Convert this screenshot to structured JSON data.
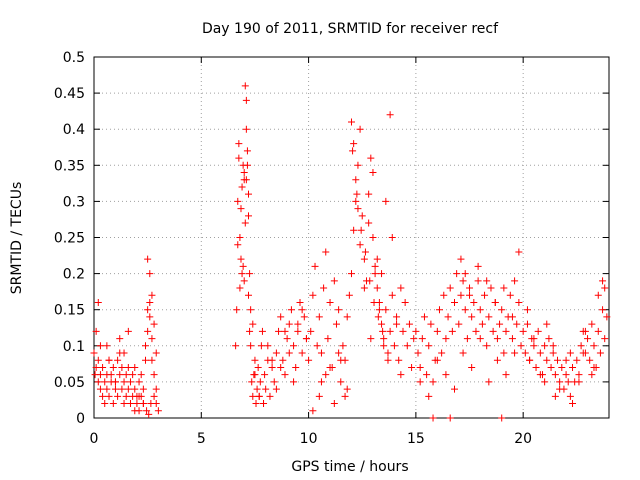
{
  "chart_data": {
    "type": "scatter",
    "title": "Day 190 of 2011, SRMTID for receiver recf",
    "xlabel": "GPS time / hours",
    "ylabel": "SRMTID / TECUs",
    "xlim": [
      0,
      24
    ],
    "ylim": [
      0,
      0.5
    ],
    "xticks": [
      "0",
      "5",
      "10",
      "15",
      "20"
    ],
    "yticks": [
      "0",
      "0.05",
      "0.1",
      "0.15",
      "0.2",
      "0.25",
      "0.3",
      "0.35",
      "0.4",
      "0.45",
      "0.5"
    ],
    "grid": true,
    "marker": "+",
    "color": "#ff0000",
    "series": [
      {
        "x": [
          0.0,
          0.1,
          0.1,
          0.2,
          0.2,
          0.3,
          0.3,
          0.4,
          0.4,
          0.5,
          0.5,
          0.6,
          0.6,
          0.7,
          0.7,
          0.8,
          0.8,
          0.9,
          0.9,
          1.0,
          1.0,
          1.1,
          1.1,
          1.2,
          1.2,
          1.3,
          1.3,
          1.4,
          1.4,
          1.5,
          1.5,
          1.6,
          1.6,
          1.7,
          1.7,
          1.8,
          1.8,
          1.9,
          1.9,
          2.0,
          2.0,
          2.1,
          2.1,
          2.2,
          2.2,
          2.3,
          2.3,
          2.4,
          2.4,
          2.5,
          2.5,
          2.6,
          2.6,
          2.7,
          2.7,
          2.8,
          2.8,
          2.9,
          2.9,
          3.0,
          0.2,
          0.6,
          1.2,
          1.6,
          2.5,
          2.6,
          2.7,
          2.8,
          2.9,
          0.05,
          0.3,
          0.7,
          1.0,
          1.4,
          1.9,
          2.1,
          2.3,
          2.45,
          2.55,
          2.65,
          6.6,
          6.65,
          6.7,
          6.75,
          6.8,
          6.85,
          6.9,
          6.95,
          7.0,
          7.05,
          7.1,
          7.15,
          7.2,
          7.25,
          7.3,
          7.35,
          7.4,
          7.45,
          7.5,
          7.55,
          7.6,
          7.65,
          7.7,
          7.75,
          7.8,
          7.85,
          7.9,
          7.95,
          8.0,
          8.1,
          8.2,
          8.3,
          8.4,
          8.5,
          8.6,
          8.7,
          8.8,
          8.9,
          9.0,
          9.1,
          9.2,
          9.3,
          9.4,
          9.5,
          9.6,
          9.7,
          9.8,
          9.9,
          6.7,
          6.8,
          6.85,
          6.95,
          7.0,
          7.1,
          7.15,
          7.2,
          7.3,
          7.4,
          6.75,
          6.9,
          7.05,
          7.25,
          7.5,
          7.7,
          7.9,
          8.1,
          8.3,
          8.5,
          8.7,
          8.9,
          9.1,
          9.3,
          9.5,
          9.7,
          9.9,
          7.0,
          7.1,
          7.2,
          10.0,
          10.1,
          10.2,
          10.3,
          10.4,
          10.5,
          10.6,
          10.7,
          10.8,
          10.9,
          11.0,
          11.1,
          11.2,
          11.3,
          11.4,
          11.5,
          11.6,
          11.7,
          11.8,
          11.9,
          12.0,
          12.1,
          12.2,
          12.3,
          12.4,
          12.5,
          12.6,
          12.7,
          12.8,
          12.9,
          13.0,
          13.1,
          13.2,
          13.3,
          13.4,
          13.5,
          13.6,
          13.7,
          13.8,
          13.9,
          14.0,
          14.1,
          14.2,
          14.3,
          14.4,
          14.5,
          14.6,
          14.7,
          14.8,
          14.9,
          12.0,
          12.1,
          12.2,
          12.3,
          12.4,
          12.6,
          12.8,
          13.0,
          13.2,
          13.4,
          13.6,
          13.8,
          12.05,
          12.25,
          12.45,
          12.65,
          12.85,
          13.05,
          13.25,
          13.45,
          10.5,
          10.8,
          11.2,
          11.5,
          11.8,
          10.2,
          10.6,
          11.0,
          11.4,
          11.7,
          12.9,
          13.1,
          13.3,
          13.5,
          13.7,
          13.9,
          14.1,
          14.3,
          15.0,
          15.1,
          15.2,
          15.3,
          15.4,
          15.5,
          15.6,
          15.7,
          15.8,
          15.9,
          16.0,
          16.1,
          16.2,
          16.3,
          16.4,
          16.5,
          16.6,
          16.7,
          16.8,
          16.9,
          17.0,
          17.1,
          17.2,
          17.3,
          17.4,
          17.5,
          17.6,
          17.7,
          17.8,
          17.9,
          18.0,
          18.1,
          18.2,
          18.3,
          18.4,
          18.5,
          18.6,
          18.7,
          18.8,
          18.9,
          19.0,
          19.1,
          19.2,
          19.3,
          19.4,
          19.5,
          19.6,
          19.7,
          19.8,
          19.9,
          15.2,
          15.6,
          16.0,
          16.4,
          16.8,
          17.2,
          17.6,
          18.0,
          18.4,
          18.8,
          19.2,
          19.6,
          17.1,
          17.3,
          17.5,
          17.9,
          18.3,
          18.7,
          19.1,
          19.5,
          19.8,
          15.8,
          16.6,
          19.0,
          20.0,
          20.1,
          20.2,
          20.3,
          20.4,
          20.5,
          20.6,
          20.7,
          20.8,
          20.9,
          21.0,
          21.1,
          21.2,
          21.3,
          21.4,
          21.5,
          21.6,
          21.7,
          21.8,
          21.9,
          22.0,
          22.1,
          22.2,
          22.3,
          22.4,
          22.5,
          22.6,
          22.7,
          22.8,
          22.9,
          23.0,
          23.1,
          23.2,
          23.3,
          23.4,
          23.5,
          23.6,
          23.7,
          23.8,
          23.9,
          20.2,
          20.5,
          20.8,
          21.1,
          21.4,
          21.7,
          22.0,
          22.3,
          22.6,
          22.9,
          23.2,
          23.5,
          23.8,
          20.3,
          21.0,
          21.5,
          22.2,
          22.8,
          23.3,
          23.7
        ],
        "y": [
          0.09,
          0.07,
          0.12,
          0.05,
          0.08,
          0.04,
          0.06,
          0.03,
          0.07,
          0.05,
          0.02,
          0.06,
          0.04,
          0.08,
          0.03,
          0.05,
          0.06,
          0.02,
          0.07,
          0.04,
          0.05,
          0.08,
          0.03,
          0.06,
          0.09,
          0.04,
          0.07,
          0.02,
          0.05,
          0.06,
          0.03,
          0.04,
          0.07,
          0.02,
          0.05,
          0.03,
          0.06,
          0.01,
          0.04,
          0.03,
          0.02,
          0.05,
          0.01,
          0.03,
          0.06,
          0.02,
          0.04,
          0.08,
          0.1,
          0.12,
          0.15,
          0.16,
          0.14,
          0.11,
          0.08,
          0.06,
          0.03,
          0.02,
          0.04,
          0.01,
          0.16,
          0.1,
          0.11,
          0.12,
          0.22,
          0.2,
          0.17,
          0.13,
          0.09,
          0.06,
          0.1,
          0.08,
          0.05,
          0.09,
          0.07,
          0.03,
          0.02,
          0.01,
          0.005,
          0.02,
          0.1,
          0.15,
          0.3,
          0.38,
          0.25,
          0.22,
          0.2,
          0.35,
          0.33,
          0.46,
          0.44,
          0.37,
          0.28,
          0.2,
          0.1,
          0.05,
          0.03,
          0.06,
          0.08,
          0.02,
          0.04,
          0.07,
          0.03,
          0.05,
          0.1,
          0.12,
          0.02,
          0.06,
          0.04,
          0.08,
          0.03,
          0.07,
          0.05,
          0.09,
          0.12,
          0.14,
          0.08,
          0.06,
          0.11,
          0.13,
          0.15,
          0.1,
          0.07,
          0.12,
          0.16,
          0.09,
          0.14,
          0.11,
          0.24,
          0.18,
          0.29,
          0.21,
          0.19,
          0.33,
          0.35,
          0.17,
          0.15,
          0.13,
          0.36,
          0.32,
          0.27,
          0.12,
          0.06,
          0.03,
          0.02,
          0.1,
          0.08,
          0.04,
          0.07,
          0.12,
          0.09,
          0.05,
          0.13,
          0.15,
          0.11,
          0.34,
          0.4,
          0.31,
          0.08,
          0.12,
          0.17,
          0.21,
          0.1,
          0.14,
          0.09,
          0.18,
          0.23,
          0.11,
          0.16,
          0.07,
          0.19,
          0.13,
          0.15,
          0.05,
          0.1,
          0.08,
          0.14,
          0.17,
          0.2,
          0.26,
          0.3,
          0.35,
          0.4,
          0.28,
          0.22,
          0.19,
          0.31,
          0.36,
          0.25,
          0.21,
          0.18,
          0.16,
          0.13,
          0.11,
          0.15,
          0.09,
          0.12,
          0.17,
          0.1,
          0.14,
          0.08,
          0.18,
          0.12,
          0.16,
          0.1,
          0.13,
          0.07,
          0.11,
          0.41,
          0.38,
          0.33,
          0.29,
          0.24,
          0.18,
          0.27,
          0.34,
          0.22,
          0.2,
          0.3,
          0.42,
          0.37,
          0.31,
          0.26,
          0.23,
          0.19,
          0.16,
          0.14,
          0.12,
          0.03,
          0.06,
          0.02,
          0.08,
          0.04,
          0.01,
          0.05,
          0.07,
          0.09,
          0.03,
          0.11,
          0.2,
          0.15,
          0.1,
          0.08,
          0.25,
          0.13,
          0.06,
          0.12,
          0.09,
          0.07,
          0.11,
          0.14,
          0.06,
          0.1,
          0.13,
          0.05,
          0.08,
          0.12,
          0.15,
          0.09,
          0.17,
          0.11,
          0.14,
          0.18,
          0.12,
          0.16,
          0.2,
          0.13,
          0.17,
          0.19,
          0.15,
          0.11,
          0.18,
          0.14,
          0.16,
          0.12,
          0.19,
          0.15,
          0.13,
          0.17,
          0.1,
          0.14,
          0.18,
          0.12,
          0.16,
          0.11,
          0.13,
          0.15,
          0.09,
          0.12,
          0.14,
          0.17,
          0.11,
          0.19,
          0.13,
          0.16,
          0.1,
          0.05,
          0.03,
          0.08,
          0.06,
          0.04,
          0.09,
          0.07,
          0.11,
          0.05,
          0.08,
          0.06,
          0.09,
          0.22,
          0.2,
          0.17,
          0.21,
          0.19,
          0.16,
          0.18,
          0.14,
          0.23,
          0.0,
          0.0,
          0.0,
          0.12,
          0.09,
          0.13,
          0.08,
          0.11,
          0.1,
          0.07,
          0.12,
          0.09,
          0.06,
          0.1,
          0.08,
          0.11,
          0.07,
          0.09,
          0.06,
          0.08,
          0.05,
          0.07,
          0.04,
          0.06,
          0.05,
          0.03,
          0.07,
          0.05,
          0.08,
          0.06,
          0.1,
          0.09,
          0.12,
          0.11,
          0.08,
          0.13,
          0.1,
          0.07,
          0.12,
          0.09,
          0.15,
          0.18,
          0.14,
          0.15,
          0.11,
          0.06,
          0.13,
          0.1,
          0.04,
          0.08,
          0.02,
          0.05,
          0.09,
          0.06,
          0.17,
          0.11,
          0.08,
          0.05,
          0.03,
          0.09,
          0.12,
          0.07,
          0.19
        ]
      }
    ]
  }
}
